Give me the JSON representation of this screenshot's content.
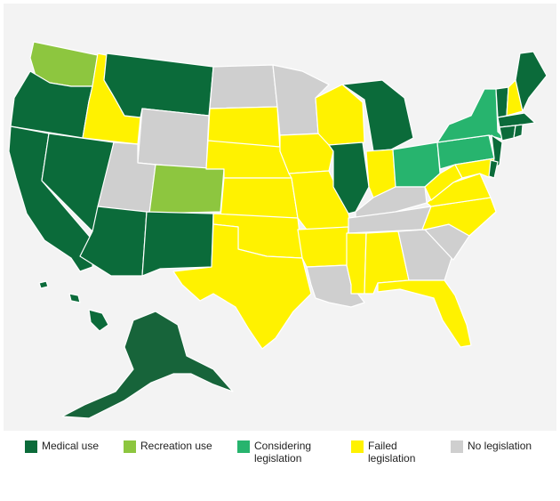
{
  "colors": {
    "medical": "#0b6b3a",
    "recreation": "#8dc63f",
    "considering": "#27b46e",
    "failed": "#fff200",
    "none": "#cfcfcf",
    "alaska": "#17643a"
  },
  "legend": [
    {
      "key": "medical",
      "label": "Medical use"
    },
    {
      "key": "recreation",
      "label": "Recreation use"
    },
    {
      "key": "considering",
      "label": "Considering\nlegislation"
    },
    {
      "key": "failed",
      "label": "Failed\nlegislation"
    },
    {
      "key": "none",
      "label": "No legislation"
    }
  ],
  "states": {
    "WA": "recreation",
    "OR": "medical",
    "CA": "medical",
    "NV": "medical",
    "ID": "failed",
    "MT": "medical",
    "WY": "none",
    "UT": "none",
    "CO": "recreation",
    "AZ": "medical",
    "NM": "medical",
    "ND": "none",
    "SD": "failed",
    "NE": "failed",
    "KS": "failed",
    "OK": "failed",
    "TX": "failed",
    "MN": "none",
    "IA": "failed",
    "MO": "failed",
    "AR": "failed",
    "LA": "none",
    "WI": "failed",
    "IL": "medical",
    "MI": "medical",
    "IN": "failed",
    "OH": "considering",
    "KY": "none",
    "TN": "none",
    "MS": "failed",
    "AL": "failed",
    "GA": "none",
    "FL": "failed",
    "SC": "none",
    "NC": "failed",
    "VA": "failed",
    "WV": "failed",
    "PA": "considering",
    "NY": "considering",
    "VT": "medical",
    "NH": "failed",
    "ME": "medical",
    "MA": "medical",
    "RI": "medical",
    "CT": "medical",
    "NJ": "medical",
    "DE": "medical",
    "MD": "failed",
    "AK": "medical",
    "HI": "medical"
  }
}
